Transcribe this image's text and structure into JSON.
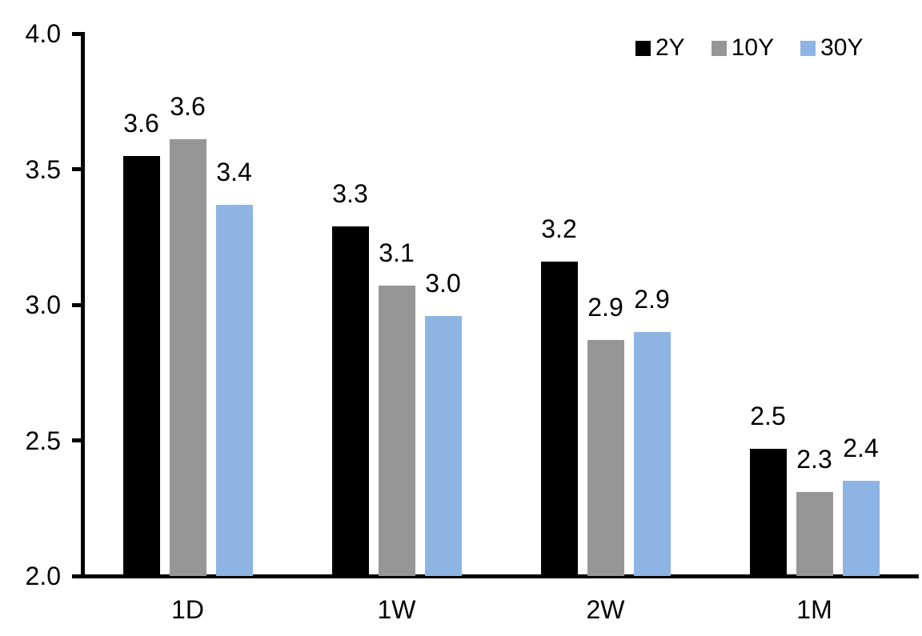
{
  "chart_data": {
    "type": "bar",
    "categories": [
      "1D",
      "1W",
      "2W",
      "1M"
    ],
    "series": [
      {
        "name": "2Y",
        "color": "#000000",
        "values": [
          3.55,
          3.29,
          3.16,
          2.47
        ],
        "labels": [
          "3.6",
          "3.3",
          "3.2",
          "2.5"
        ]
      },
      {
        "name": "10Y",
        "color": "#969696",
        "values": [
          3.61,
          3.07,
          2.87,
          2.31
        ],
        "labels": [
          "3.6",
          "3.1",
          "2.9",
          "2.3"
        ]
      },
      {
        "name": "30Y",
        "color": "#8DB4E3",
        "values": [
          3.37,
          2.96,
          2.9,
          2.35
        ],
        "labels": [
          "3.4",
          "3.0",
          "2.9",
          "2.4"
        ]
      }
    ],
    "y_axis": {
      "min": 2.0,
      "max": 4.0,
      "tick_values": [
        4.0,
        3.5,
        3.0,
        2.5,
        2.0
      ],
      "tick_labels": [
        "4.0",
        "3.5",
        "3.0",
        "2.5",
        "2.0"
      ]
    },
    "legend": {
      "position": "top-right",
      "entries": [
        "2Y",
        "10Y",
        "30Y"
      ]
    },
    "grid": false,
    "background_color": "#FFFFFF",
    "axis_color": "#000000",
    "label_color": "#000000"
  }
}
